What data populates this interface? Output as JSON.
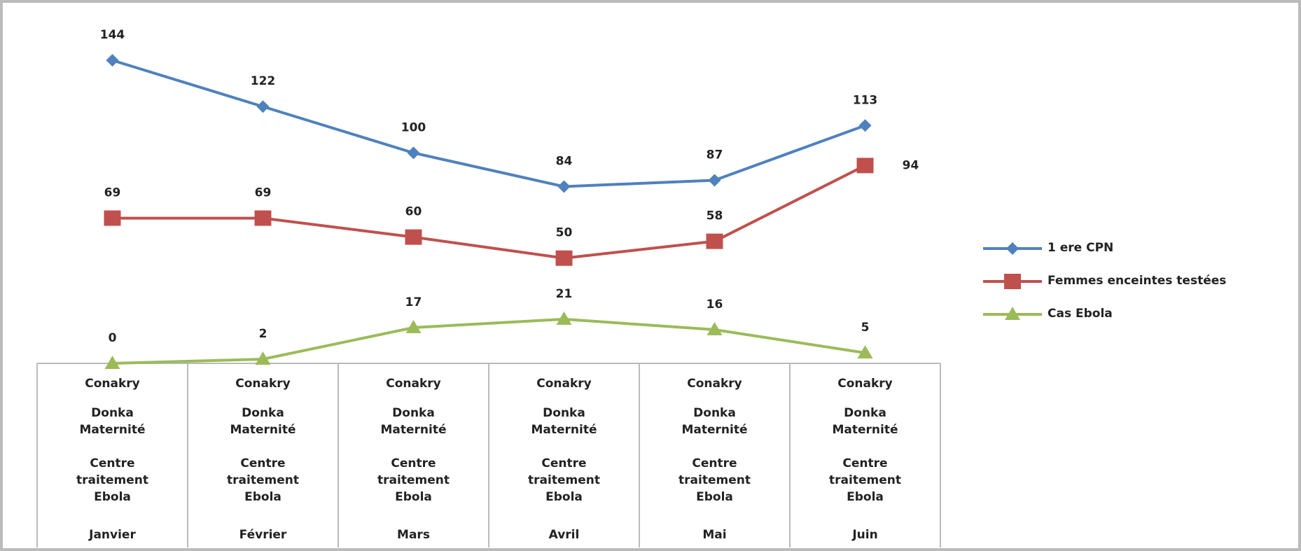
{
  "chart_data": {
    "type": "line",
    "categories": [
      [
        "Conakry",
        "Donka Maternité",
        "Centre traitement Ebola",
        "Janvier"
      ],
      [
        "Conakry",
        "Donka Maternité",
        "Centre traitement Ebola",
        "Février"
      ],
      [
        "Conakry",
        "Donka Maternité",
        "Centre traitement Ebola",
        "Mars"
      ],
      [
        "Conakry",
        "Donka Maternité",
        "Centre traitement Ebola",
        "Avril"
      ],
      [
        "Conakry",
        "Donka Maternité",
        "Centre traitement Ebola",
        "Mai"
      ],
      [
        "Conakry",
        "Donka Maternité",
        "Centre traitement Ebola",
        "Juin"
      ]
    ],
    "series": [
      {
        "name": "1 ere CPN",
        "color": "#4f81bd",
        "marker": "diamond",
        "values": [
          144,
          122,
          100,
          84,
          87,
          113
        ]
      },
      {
        "name": "Femmes enceintes testées",
        "color": "#c0504d",
        "marker": "square",
        "values": [
          69,
          69,
          60,
          50,
          58,
          94
        ]
      },
      {
        "name": "Cas Ebola",
        "color": "#9bbb59",
        "marker": "triangle",
        "values": [
          0,
          2,
          17,
          21,
          16,
          5
        ]
      }
    ],
    "ylim": [
      0,
      160
    ],
    "legend": "right"
  }
}
